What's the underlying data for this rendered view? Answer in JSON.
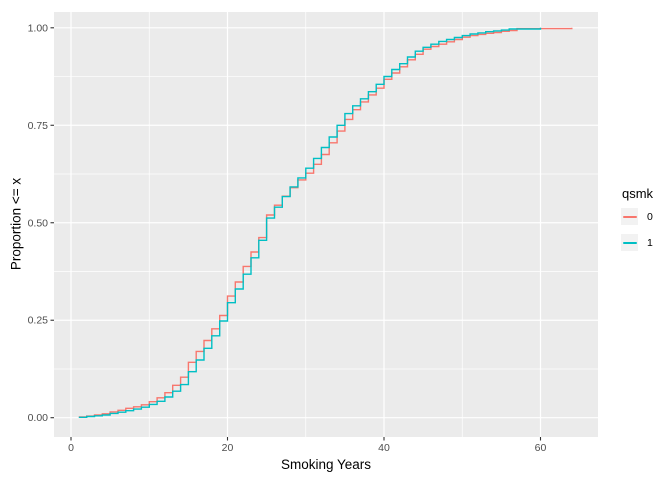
{
  "chart_data": {
    "type": "line",
    "subtype": "ecdf_step",
    "title": "",
    "xlabel": "Smoking Years",
    "ylabel": "Proportion <= x",
    "grid": true,
    "panel_background": "#EBEBEB",
    "grid_color": "#FFFFFF",
    "tick_color": "#333333",
    "tick_label_color": "#4D4D4D",
    "legend": {
      "title": "qsmk",
      "position": "right",
      "key_background": "#F2F2F2"
    },
    "x_axis": {
      "range": [
        -2.2,
        67.3
      ],
      "ticks": [
        {
          "value": 0,
          "label": "0"
        },
        {
          "value": 20,
          "label": "20"
        },
        {
          "value": 40,
          "label": "40"
        },
        {
          "value": 60,
          "label": "60"
        }
      ],
      "minor_ticks": [
        10,
        30,
        50
      ]
    },
    "y_axis": {
      "range": [
        -0.05,
        1.05
      ],
      "ticks": [
        {
          "value": 0,
          "label": "0.00"
        },
        {
          "value": 0.25,
          "label": "0.25"
        },
        {
          "value": 0.5,
          "label": "0.50"
        },
        {
          "value": 0.75,
          "label": "0.75"
        },
        {
          "value": 1,
          "label": "1.00"
        }
      ],
      "minor_ticks": [
        0.125,
        0.375,
        0.625,
        0.875
      ]
    },
    "series": [
      {
        "name": "0",
        "color": "#F8766D",
        "points": [
          [
            1,
            0.002
          ],
          [
            2,
            0.004
          ],
          [
            3,
            0.007
          ],
          [
            4,
            0.01
          ],
          [
            5,
            0.015
          ],
          [
            6,
            0.019
          ],
          [
            7,
            0.024
          ],
          [
            8,
            0.028
          ],
          [
            9,
            0.033
          ],
          [
            10,
            0.041
          ],
          [
            11,
            0.051
          ],
          [
            12,
            0.064
          ],
          [
            13,
            0.083
          ],
          [
            14,
            0.104
          ],
          [
            15,
            0.142
          ],
          [
            16,
            0.17
          ],
          [
            17,
            0.198
          ],
          [
            18,
            0.228
          ],
          [
            19,
            0.262
          ],
          [
            20,
            0.312
          ],
          [
            21,
            0.348
          ],
          [
            22,
            0.388
          ],
          [
            23,
            0.425
          ],
          [
            24,
            0.462
          ],
          [
            25,
            0.52
          ],
          [
            26,
            0.545
          ],
          [
            27,
            0.568
          ],
          [
            28,
            0.59
          ],
          [
            29,
            0.61
          ],
          [
            30,
            0.627
          ],
          [
            31,
            0.65
          ],
          [
            32,
            0.675
          ],
          [
            33,
            0.705
          ],
          [
            34,
            0.735
          ],
          [
            35,
            0.765
          ],
          [
            36,
            0.79
          ],
          [
            37,
            0.81
          ],
          [
            38,
            0.828
          ],
          [
            39,
            0.845
          ],
          [
            40,
            0.868
          ],
          [
            41,
            0.884
          ],
          [
            42,
            0.9
          ],
          [
            43,
            0.918
          ],
          [
            44,
            0.932
          ],
          [
            45,
            0.945
          ],
          [
            46,
            0.952
          ],
          [
            47,
            0.958
          ],
          [
            48,
            0.964
          ],
          [
            49,
            0.97
          ],
          [
            50,
            0.976
          ],
          [
            51,
            0.98
          ],
          [
            52,
            0.983
          ],
          [
            53,
            0.986
          ],
          [
            54,
            0.988
          ],
          [
            55,
            0.991
          ],
          [
            56,
            0.993
          ],
          [
            57,
            0.998
          ],
          [
            64,
            1.0
          ]
        ]
      },
      {
        "name": "1",
        "color": "#00BFC4",
        "points": [
          [
            1,
            0.001
          ],
          [
            2,
            0.003
          ],
          [
            3,
            0.005
          ],
          [
            4,
            0.007
          ],
          [
            5,
            0.011
          ],
          [
            6,
            0.014
          ],
          [
            7,
            0.018
          ],
          [
            8,
            0.022
          ],
          [
            9,
            0.027
          ],
          [
            10,
            0.034
          ],
          [
            11,
            0.042
          ],
          [
            12,
            0.053
          ],
          [
            13,
            0.068
          ],
          [
            14,
            0.085
          ],
          [
            15,
            0.118
          ],
          [
            16,
            0.148
          ],
          [
            17,
            0.178
          ],
          [
            18,
            0.21
          ],
          [
            19,
            0.248
          ],
          [
            20,
            0.295
          ],
          [
            21,
            0.33
          ],
          [
            22,
            0.368
          ],
          [
            23,
            0.41
          ],
          [
            24,
            0.455
          ],
          [
            25,
            0.512
          ],
          [
            26,
            0.54
          ],
          [
            27,
            0.567
          ],
          [
            28,
            0.592
          ],
          [
            29,
            0.615
          ],
          [
            30,
            0.64
          ],
          [
            31,
            0.665
          ],
          [
            32,
            0.693
          ],
          [
            33,
            0.72
          ],
          [
            34,
            0.75
          ],
          [
            35,
            0.78
          ],
          [
            36,
            0.8
          ],
          [
            37,
            0.818
          ],
          [
            38,
            0.836
          ],
          [
            39,
            0.855
          ],
          [
            40,
            0.875
          ],
          [
            41,
            0.893
          ],
          [
            42,
            0.908
          ],
          [
            43,
            0.925
          ],
          [
            44,
            0.94
          ],
          [
            45,
            0.95
          ],
          [
            46,
            0.958
          ],
          [
            47,
            0.965
          ],
          [
            48,
            0.97
          ],
          [
            49,
            0.975
          ],
          [
            50,
            0.98
          ],
          [
            51,
            0.984
          ],
          [
            52,
            0.987
          ],
          [
            53,
            0.99
          ],
          [
            54,
            0.992
          ],
          [
            55,
            0.994
          ],
          [
            56,
            0.997
          ],
          [
            60,
            1.0
          ]
        ]
      }
    ]
  }
}
